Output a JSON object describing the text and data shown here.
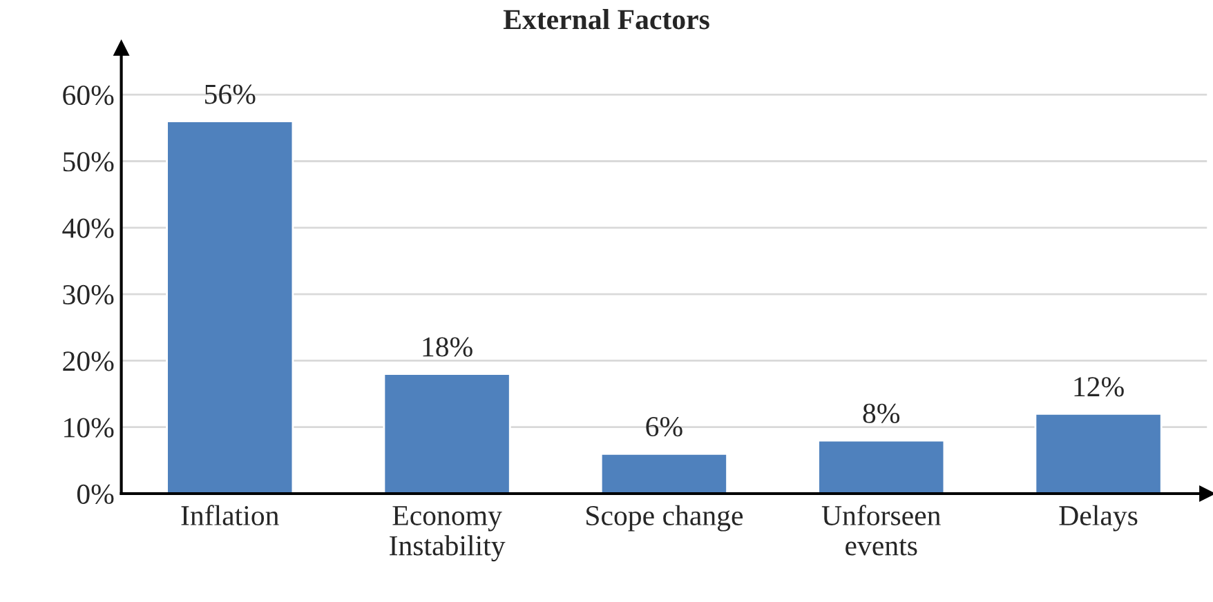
{
  "chart_data": {
    "type": "bar",
    "title": "External Factors",
    "categories": [
      "Inflation",
      "Economy\nInstability",
      "Scope change",
      "Unforseen\nevents",
      "Delays"
    ],
    "values": [
      56,
      18,
      6,
      8,
      12
    ],
    "value_labels": [
      "56%",
      "18%",
      "6%",
      "8%",
      "12%"
    ],
    "color": "#4f81bd",
    "ylim": [
      0,
      67
    ],
    "yticks": [
      {
        "value": 0,
        "label": "0%"
      },
      {
        "value": 10,
        "label": "10%"
      },
      {
        "value": 20,
        "label": "20%"
      },
      {
        "value": 30,
        "label": "30%"
      },
      {
        "value": 40,
        "label": "40%"
      },
      {
        "value": 50,
        "label": "50%"
      },
      {
        "value": 60,
        "label": "60%"
      }
    ],
    "grid": "y",
    "legend": false
  }
}
